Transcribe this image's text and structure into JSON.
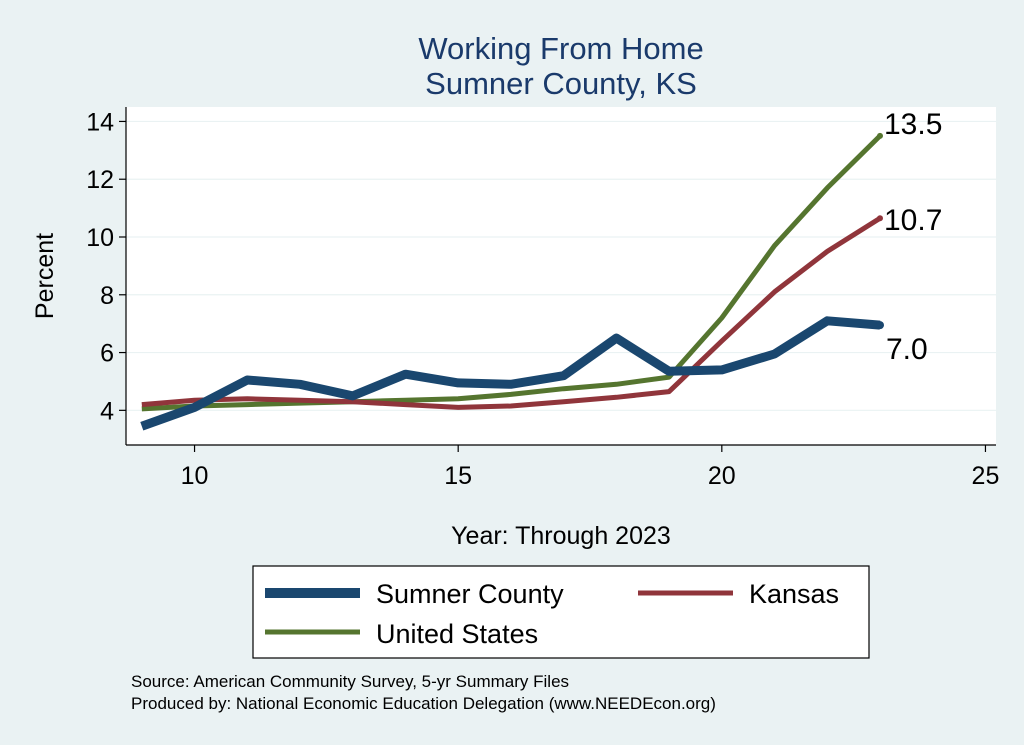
{
  "chart_data": {
    "type": "line",
    "title": [
      "Working From Home",
      "Sumner County, KS"
    ],
    "xlabel": "Year: Through 2023",
    "ylabel": "Percent",
    "xlim": [
      8.7,
      25.2
    ],
    "ylim": [
      2.8,
      14.5
    ],
    "xticks": [
      10,
      15,
      20,
      25
    ],
    "yticks": [
      4,
      6,
      8,
      10,
      12,
      14
    ],
    "grid": true,
    "legend_position": "bottom",
    "x": [
      9,
      10,
      11,
      12,
      13,
      14,
      15,
      16,
      17,
      18,
      19,
      20,
      21,
      22,
      23
    ],
    "series": [
      {
        "name": "Sumner County",
        "color": "#1a476f",
        "values": [
          3.45,
          4.1,
          5.05,
          4.9,
          4.5,
          5.25,
          4.95,
          4.9,
          5.2,
          6.5,
          5.35,
          5.4,
          5.95,
          7.1,
          6.95
        ],
        "end_label": "7.0"
      },
      {
        "name": "Kansas",
        "color": "#90353b",
        "values": [
          4.2,
          4.35,
          4.4,
          4.35,
          4.3,
          4.2,
          4.1,
          4.15,
          4.3,
          4.45,
          4.65,
          6.4,
          8.1,
          9.5,
          10.65
        ],
        "end_label": "10.7"
      },
      {
        "name": "United States",
        "color": "#55752f",
        "values": [
          4.05,
          4.15,
          4.2,
          4.25,
          4.3,
          4.35,
          4.4,
          4.55,
          4.75,
          4.9,
          5.15,
          7.2,
          9.7,
          11.7,
          13.5
        ],
        "end_label": "13.5"
      }
    ]
  },
  "source_note": "Source: American Community Survey, 5-yr Summary Files",
  "producer_note": "Produced by: National Economic Education Delegation (www.NEEDEcon.org)"
}
